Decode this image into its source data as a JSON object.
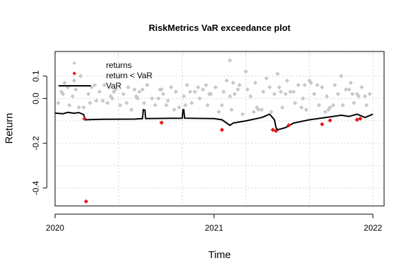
{
  "chart_data": {
    "type": "scatter",
    "title": "RiskMetrics VaR exceedance plot",
    "xlabel": "Time",
    "ylabel": "Return",
    "xlim": [
      2020.0,
      2022.07
    ],
    "ylim": [
      -0.48,
      0.21
    ],
    "x_ticks": [
      2020,
      2021,
      2022
    ],
    "x_tick_labels": [
      "2020",
      "2021",
      "2022"
    ],
    "y_ticks": [
      -0.4,
      -0.2,
      0.0,
      0.1
    ],
    "y_tick_labels": [
      "-0.4",
      "-0.2",
      "0.0",
      "0.1"
    ],
    "grid": true,
    "legend_position": "top-left",
    "legend": [
      {
        "label": "returns",
        "color": "#c8c8c8",
        "marker": "diamond"
      },
      {
        "label": "return < VaR",
        "color": "#e31a1c",
        "marker": "diamond"
      },
      {
        "label": "VaR",
        "color": "#000000",
        "marker": "line"
      }
    ],
    "series": [
      {
        "name": "returns",
        "kind": "scatter",
        "color": "#c8c8c8",
        "note": "approx. daily returns, mostly within about -0.08 .. +0.09",
        "x": [
          2020.02,
          2020.04,
          2020.06,
          2020.09,
          2020.11,
          2020.13,
          2020.16,
          2020.18,
          2020.21,
          2020.23,
          2020.26,
          2020.28,
          2020.31,
          2020.33,
          2020.36,
          2020.38,
          2020.41,
          2020.43,
          2020.46,
          2020.48,
          2020.51,
          2020.53,
          2020.56,
          2020.58,
          2020.61,
          2020.63,
          2020.66,
          2020.68,
          2020.71,
          2020.73,
          2020.76,
          2020.78,
          2020.81,
          2020.83,
          2020.86,
          2020.88,
          2020.91,
          2020.93,
          2020.96,
          2020.98,
          2021.01,
          2021.03,
          2021.06,
          2021.08,
          2021.11,
          2021.13,
          2021.16,
          2021.18,
          2021.21,
          2021.23,
          2021.26,
          2021.28,
          2021.31,
          2021.33,
          2021.36,
          2021.38,
          2021.41,
          2021.43,
          2021.46,
          2021.48,
          2021.51,
          2021.53,
          2021.56,
          2021.58,
          2021.61,
          2021.63,
          2021.66,
          2021.68,
          2021.71,
          2021.73,
          2021.76,
          2021.78,
          2021.81,
          2021.83,
          2021.86,
          2021.88,
          2021.91,
          2021.93,
          2021.96,
          2021.98,
          2020.05,
          2020.15,
          2020.25,
          2020.35,
          2020.45,
          2020.55,
          2020.65,
          2020.75,
          2020.85,
          2020.95,
          2021.05,
          2021.15,
          2021.25,
          2021.35,
          2021.45,
          2021.55,
          2021.65,
          2021.75,
          2021.85,
          2021.95,
          2020.08,
          2020.22,
          2020.37,
          2020.52,
          2020.67,
          2020.82,
          2020.97,
          2021.12,
          2021.27,
          2021.42,
          2021.57,
          2021.72,
          2021.87,
          2020.12,
          2020.3,
          2020.5,
          2020.7,
          2020.9,
          2021.1,
          2021.3,
          2021.5,
          2021.7,
          2021.9,
          2021.1,
          2021.2,
          2021.4,
          2021.6,
          2021.8
        ],
        "y": [
          -0.02,
          0.03,
          0.07,
          -0.03,
          0.01,
          0.04,
          0.1,
          -0.04,
          0.02,
          0.05,
          -0.01,
          0.03,
          0.06,
          -0.02,
          0.0,
          0.04,
          -0.03,
          0.02,
          0.05,
          -0.05,
          0.01,
          0.03,
          -0.02,
          0.06,
          0.0,
          -0.03,
          0.04,
          0.02,
          -0.01,
          0.05,
          0.03,
          -0.04,
          0.01,
          0.06,
          -0.02,
          0.03,
          0.0,
          0.04,
          -0.03,
          0.02,
          0.05,
          -0.06,
          0.03,
          0.08,
          -0.05,
          0.02,
          0.06,
          -0.07,
          0.04,
          0.01,
          0.07,
          -0.05,
          0.03,
          0.09,
          -0.06,
          0.02,
          0.05,
          -0.04,
          0.08,
          0.03,
          -0.02,
          0.06,
          0.0,
          -0.05,
          0.07,
          0.02,
          -0.03,
          0.05,
          0.01,
          -0.04,
          0.06,
          0.02,
          -0.03,
          0.04,
          0.07,
          -0.02,
          0.01,
          0.05,
          -0.03,
          0.02,
          0.02,
          -0.04,
          0.06,
          0.01,
          -0.02,
          0.04,
          0.0,
          -0.05,
          0.03,
          0.06,
          -0.03,
          0.04,
          -0.06,
          0.05,
          0.02,
          -0.04,
          0.06,
          -0.03,
          0.04,
          0.01,
          0.05,
          -0.02,
          0.03,
          0.0,
          0.04,
          -0.03,
          0.02,
          0.07,
          -0.04,
          0.03,
          0.06,
          -0.05,
          0.02,
          0.08,
          -0.01,
          0.04,
          -0.03,
          0.05,
          0.01,
          -0.05,
          0.03,
          -0.06,
          0.02,
          0.17,
          0.12,
          0.11,
          0.08,
          0.1
        ]
      },
      {
        "name": "return < VaR",
        "kind": "scatter",
        "color": "#e31a1c",
        "x": [
          2020.185,
          2020.195,
          2020.67,
          2021.05,
          2021.37,
          2021.39,
          2021.47,
          2021.68,
          2021.73,
          2021.9,
          2021.92
        ],
        "y": [
          -0.09,
          -0.46,
          -0.108,
          -0.14,
          -0.14,
          -0.145,
          -0.12,
          -0.115,
          -0.098,
          -0.095,
          -0.09
        ]
      },
      {
        "name": "VaR",
        "kind": "line",
        "color": "#000000",
        "x": [
          2020.0,
          2020.05,
          2020.08,
          2020.12,
          2020.15,
          2020.18,
          2020.19,
          2020.3,
          2020.5,
          2020.55,
          2020.555,
          2020.565,
          2020.57,
          2020.8,
          2020.805,
          2020.81,
          2020.815,
          2021.0,
          2021.05,
          2021.1,
          2021.12,
          2021.2,
          2021.3,
          2021.35,
          2021.38,
          2021.39,
          2021.4,
          2021.45,
          2021.5,
          2021.6,
          2021.7,
          2021.8,
          2021.85,
          2021.9,
          2021.95,
          2022.0
        ],
        "y": [
          -0.065,
          -0.068,
          -0.062,
          -0.066,
          -0.063,
          -0.072,
          -0.095,
          -0.093,
          -0.092,
          -0.09,
          -0.05,
          -0.052,
          -0.09,
          -0.088,
          -0.05,
          -0.05,
          -0.088,
          -0.09,
          -0.095,
          -0.12,
          -0.11,
          -0.1,
          -0.085,
          -0.07,
          -0.095,
          -0.13,
          -0.14,
          -0.13,
          -0.11,
          -0.095,
          -0.085,
          -0.075,
          -0.08,
          -0.07,
          -0.085,
          -0.07
        ]
      }
    ]
  }
}
